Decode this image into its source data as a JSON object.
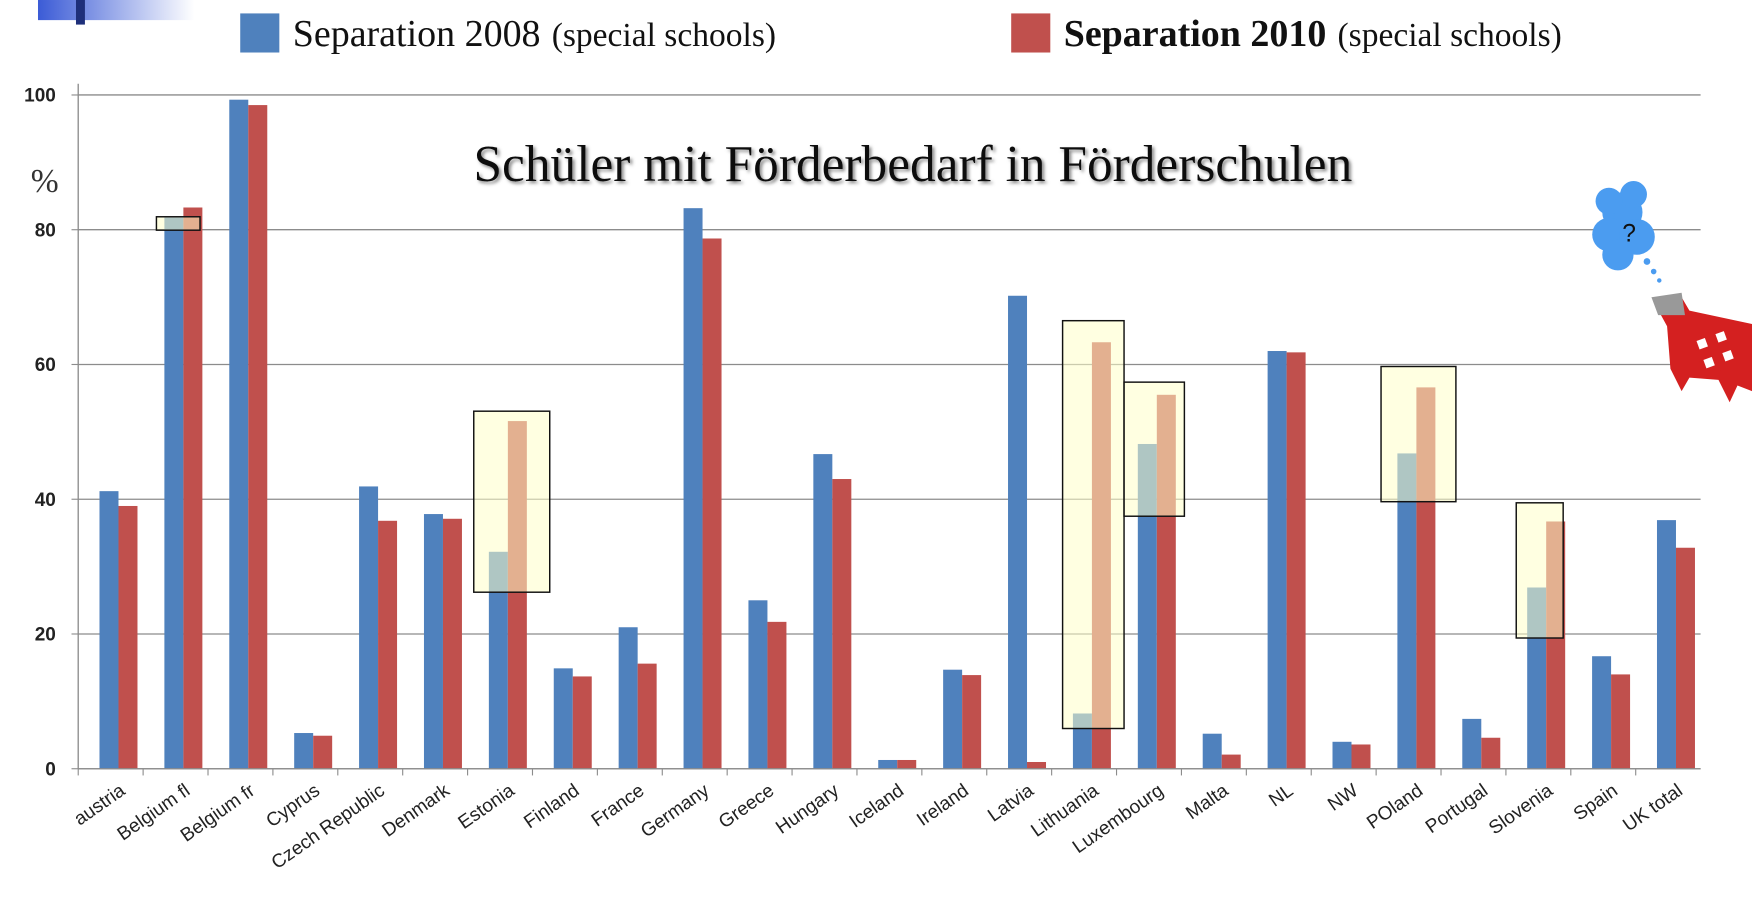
{
  "chart_data": {
    "type": "bar",
    "title": "Schüler mit Förderbedarf in Förderschulen",
    "y_label": "%",
    "thought_bubble": "?",
    "categories": [
      "austria",
      "Belgium fl",
      "Belgium fr",
      "Cyprus",
      "Czech Republic",
      "Denmark",
      "Estonia",
      "Finland",
      "France",
      "Germany",
      "Greece",
      "Hungary",
      "Iceland",
      "Ireland",
      "Latvia",
      "Lithuania",
      "Luxembourg",
      "Malta",
      "NL",
      "NW",
      "POland",
      "Portugal",
      "Slovenia",
      "Spain",
      "UK total"
    ],
    "series": [
      {
        "name": "Separation 2008",
        "legend_suffix": "(special schools)",
        "color": "#4f81bd",
        "values": [
          41.2,
          81.8,
          99.3,
          5.3,
          41.9,
          37.8,
          32.2,
          14.9,
          21,
          83.2,
          25,
          46.7,
          1.3,
          14.7,
          70.2,
          8.2,
          48.2,
          5.2,
          62,
          4,
          46.8,
          7.4,
          26.9,
          16.7,
          36.9
        ]
      },
      {
        "name": "Separation 2010",
        "legend_suffix": "(special schools)",
        "color": "#c0504d",
        "values": [
          39,
          83.3,
          98.5,
          4.9,
          36.8,
          37.1,
          51.6,
          13.7,
          15.6,
          78.7,
          21.8,
          43,
          1.3,
          13.9,
          1,
          63.3,
          55.5,
          2.1,
          61.8,
          3.6,
          56.6,
          4.6,
          36.7,
          14,
          32.8
        ]
      }
    ],
    "ylim": [
      0,
      100
    ],
    "yticks": [
      0,
      20,
      40,
      60,
      80,
      100
    ],
    "grid": true
  }
}
